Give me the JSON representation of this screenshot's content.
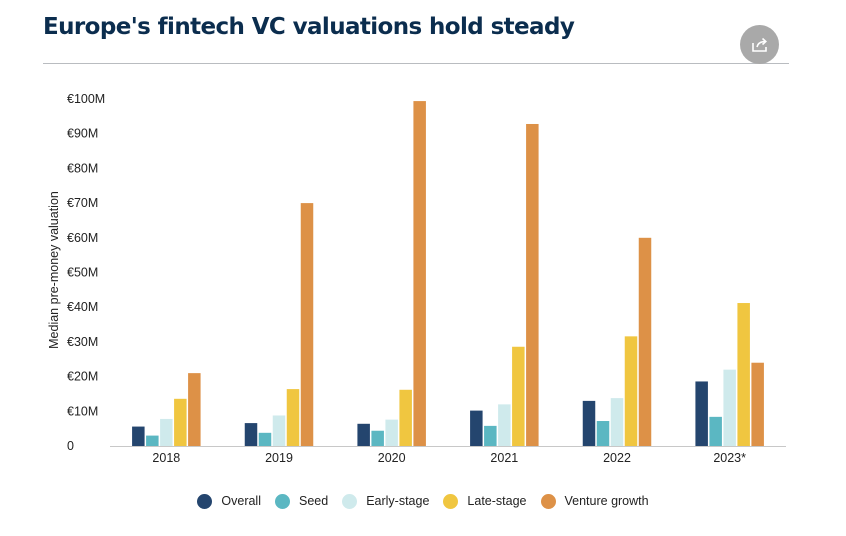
{
  "title": "Europe's fintech VC valuations hold steady",
  "share_icon": "share-icon",
  "colors": {
    "Overall": "#24456e",
    "Seed": "#5bb7c2",
    "Early-stage": "#cfeaec",
    "Late-stage": "#f0c640",
    "Venture growth": "#dd9147"
  },
  "chart_data": {
    "type": "bar",
    "title": "Europe's fintech VC valuations hold steady",
    "xlabel": "",
    "ylabel": "Median pre-money valuation",
    "ylim": [
      0,
      100
    ],
    "y_ticks": [
      "0",
      "€10M",
      "€20M",
      "€30M",
      "€40M",
      "€50M",
      "€60M",
      "€70M",
      "€80M",
      "€90M",
      "€100M"
    ],
    "y_tick_values": [
      0,
      10,
      20,
      30,
      40,
      50,
      60,
      70,
      80,
      90,
      100
    ],
    "categories": [
      "2018",
      "2019",
      "2020",
      "2021",
      "2022",
      "2023*"
    ],
    "series": [
      {
        "name": "Overall",
        "values": [
          5.6,
          6.6,
          6.4,
          10.2,
          13.0,
          18.6
        ]
      },
      {
        "name": "Seed",
        "values": [
          3.0,
          3.8,
          4.4,
          5.8,
          7.2,
          8.4
        ]
      },
      {
        "name": "Early-stage",
        "values": [
          7.8,
          8.8,
          7.6,
          12.0,
          13.8,
          22.0
        ]
      },
      {
        "name": "Late-stage",
        "values": [
          13.6,
          16.4,
          16.2,
          28.6,
          31.6,
          41.2
        ]
      },
      {
        "name": "Venture growth",
        "values": [
          21.0,
          70.0,
          99.4,
          92.8,
          60.0,
          24.0
        ]
      }
    ],
    "grid": false,
    "legend_position": "bottom-center"
  }
}
